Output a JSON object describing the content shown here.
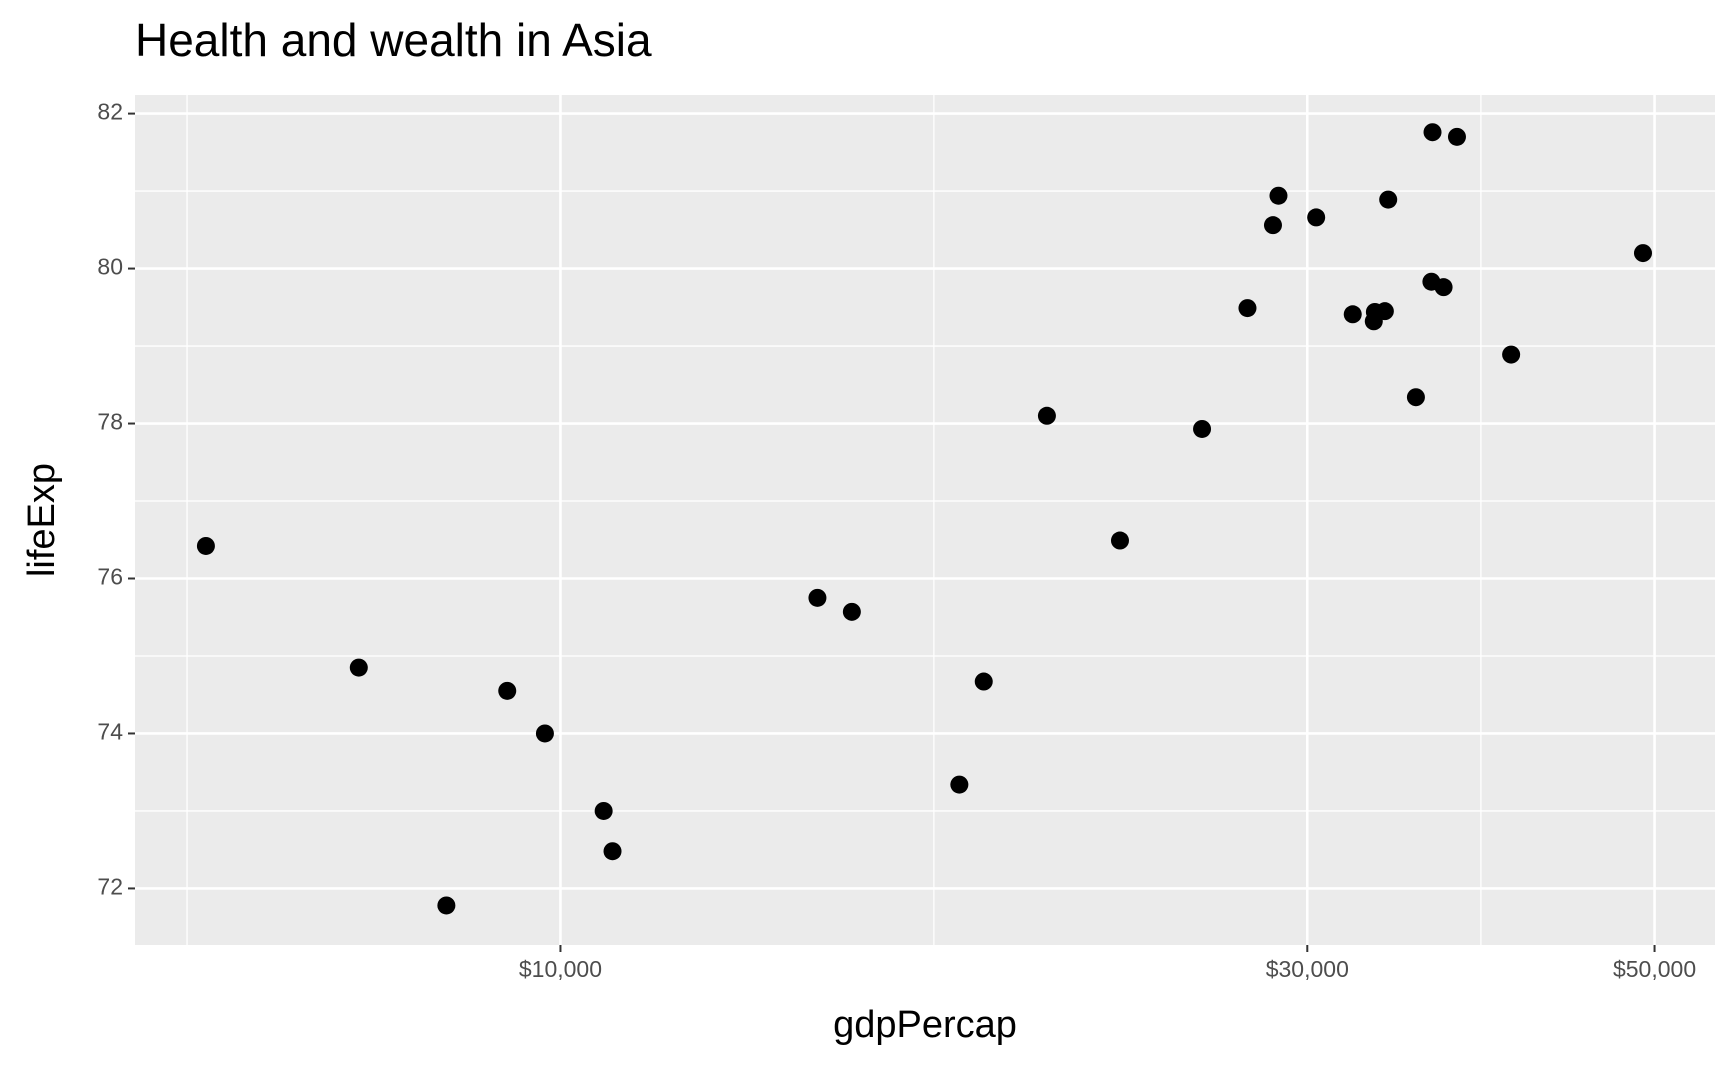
{
  "chart_data": {
    "type": "scatter",
    "title": "Health and wealth in Asia",
    "x_label": "gdpPercap",
    "y_label": "lifeExp",
    "x": [
      5936,
      7433,
      8455,
      9247,
      9774,
      10656,
      10796,
      14594,
      15352,
      17982,
      18639,
      20454,
      22775,
      25697,
      27473,
      28523,
      28755,
      30395,
      32074,
      33083,
      33136,
      33626,
      33792,
      35198,
      36009,
      36068,
      36660,
      37389,
      40490,
      49157
    ],
    "values": [
      76.42,
      74.85,
      71.78,
      74.55,
      74.0,
      73.0,
      72.48,
      75.75,
      75.57,
      73.34,
      74.67,
      78.1,
      76.49,
      77.93,
      79.49,
      80.56,
      80.94,
      80.66,
      79.41,
      79.32,
      79.44,
      79.45,
      80.89,
      78.34,
      79.83,
      81.76,
      79.76,
      81.7,
      78.89,
      80.2
    ],
    "color": "#000000",
    "xlog": true,
    "xlim": [
      5348,
      54650
    ],
    "ylim": [
      71.27,
      82.24
    ],
    "xticks": [
      {
        "value": 10000,
        "label": "$10,000"
      },
      {
        "value": 30000,
        "label": "$30,000"
      },
      {
        "value": 50000,
        "label": "$50,000"
      }
    ],
    "yticks": [
      72,
      74,
      76,
      78,
      80,
      82
    ],
    "grid": true
  }
}
